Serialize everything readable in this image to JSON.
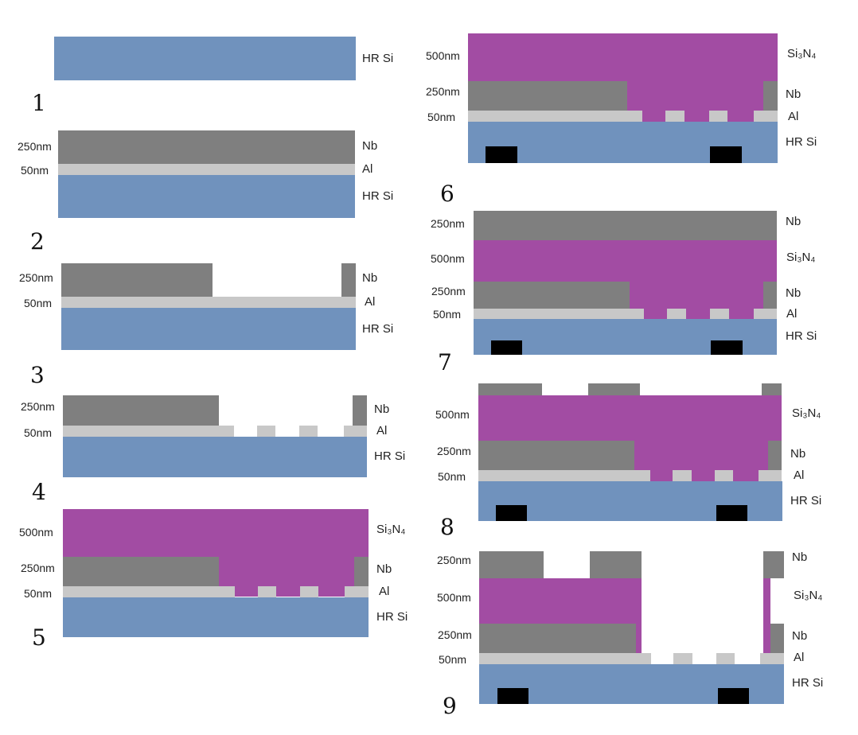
{
  "layers": {
    "substrate": "HR Si",
    "aluminum": "Al",
    "niobium": "Nb",
    "nitride": "Si₃N₄"
  },
  "thickness": {
    "nb": "250nm",
    "al": "50nm",
    "nitride": "500nm"
  },
  "colors": {
    "substrate": "#7092bd",
    "niobium": "#7f7f7f",
    "aluminum": "#c8c8c8",
    "nitride": "#a24ca3",
    "marker": "#000000"
  },
  "steps": [
    {
      "number": "1"
    },
    {
      "number": "2"
    },
    {
      "number": "3"
    },
    {
      "number": "4"
    },
    {
      "number": "5"
    },
    {
      "number": "6"
    },
    {
      "number": "7"
    },
    {
      "number": "8"
    },
    {
      "number": "9"
    }
  ]
}
